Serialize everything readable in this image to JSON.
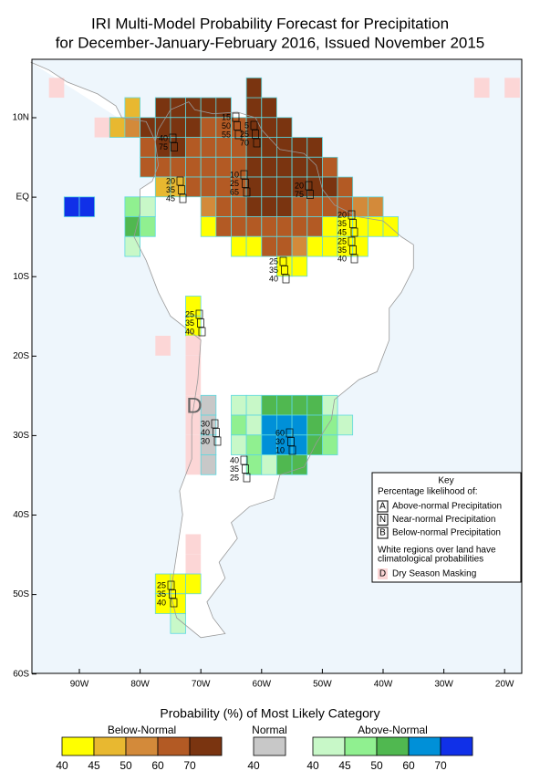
{
  "title": [
    "IRI Multi-Model Probability Forecast for Precipitation",
    "for December-January-February 2016, Issued November 2015"
  ],
  "lat_labels": [
    "10N",
    "EQ",
    "10S",
    "20S",
    "30S",
    "40S",
    "50S",
    "60S"
  ],
  "lon_labels": [
    "90W",
    "80W",
    "70W",
    "60W",
    "50W",
    "40W",
    "30W",
    "20W"
  ],
  "dry_mask_letter": "D",
  "annotations": [
    {
      "lines": [
        "15",
        "50",
        "55"
      ]
    },
    {
      "lines": [
        "5",
        "25",
        "70"
      ]
    },
    {
      "lines": [
        "40",
        "75"
      ]
    },
    {
      "lines": [
        "20",
        "35",
        "45"
      ]
    },
    {
      "lines": [
        "10",
        "25",
        "65"
      ]
    },
    {
      "lines": [
        "20",
        "75"
      ]
    },
    {
      "lines": [
        "20",
        "35",
        "45"
      ]
    },
    {
      "lines": [
        "25",
        "35",
        "40"
      ]
    },
    {
      "lines": [
        "25",
        "35",
        "40"
      ]
    },
    {
      "lines": [
        "25",
        "35",
        "40"
      ]
    },
    {
      "lines": [
        "30",
        "40",
        "30"
      ]
    },
    {
      "lines": [
        "60",
        "30",
        "10"
      ]
    },
    {
      "lines": [
        "40",
        "35",
        "25"
      ]
    },
    {
      "lines": [
        "25",
        "35",
        "40"
      ]
    }
  ],
  "key": {
    "title": "Key",
    "subtitle": "Percentage likelihood of:",
    "items": [
      {
        "letter": "A",
        "text": "Above-normal Precipitation"
      },
      {
        "letter": "N",
        "text": "Near-normal Precipitation"
      },
      {
        "letter": "B",
        "text": "Below-normal Precipitation"
      }
    ],
    "note": [
      "White regions over land have",
      "climatological probabilities"
    ],
    "dry": {
      "letter": "D",
      "text": "Dry Season Masking"
    }
  },
  "legend": {
    "title": "Probability (%) of Most Likely Category",
    "groups": [
      {
        "name": "Below-Normal",
        "colors": [
          "#ffff00",
          "#e8b830",
          "#d38a3a",
          "#b35a24",
          "#7a3410"
        ],
        "labels": [
          "40",
          "45",
          "50",
          "60",
          "70"
        ]
      },
      {
        "name": "Normal",
        "colors": [
          "#c8c8c8"
        ],
        "labels": [
          "40"
        ]
      },
      {
        "name": "Above-Normal",
        "colors": [
          "#c8f8c8",
          "#90f090",
          "#50b850",
          "#0090d8",
          "#1030e8"
        ],
        "labels": [
          "40",
          "45",
          "50",
          "60",
          "70"
        ]
      }
    ]
  }
}
